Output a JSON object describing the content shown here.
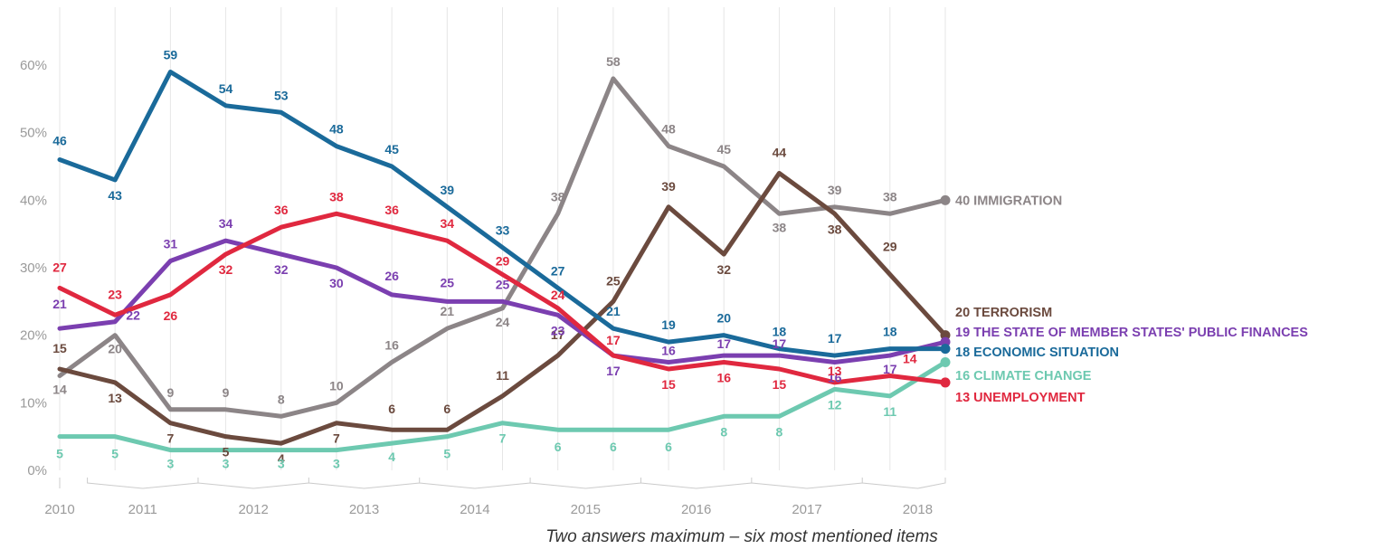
{
  "chart_data": {
    "type": "line",
    "caption": "Two answers maximum – six most mentioned items",
    "ylim": [
      0,
      60
    ],
    "y_ticks": [
      "0%",
      "10%",
      "20%",
      "30%",
      "40%",
      "50%",
      "60%"
    ],
    "x_tick_labels": [
      "2010",
      "2011",
      "2012",
      "2013",
      "2014",
      "2015",
      "2016",
      "2017",
      "2018"
    ],
    "grid": "vertical",
    "legend": "inline-right",
    "series": [
      {
        "id": "immigration",
        "end_label": "IMMIGRATION",
        "color": "#8c8587",
        "values": [
          14,
          20,
          9,
          9,
          8,
          10,
          16,
          21,
          24,
          38,
          58,
          48,
          45,
          38,
          39,
          38,
          40
        ]
      },
      {
        "id": "terrorism",
        "end_label": "TERRORISM",
        "color": "#6b4a3e",
        "values": [
          15,
          13,
          7,
          5,
          4,
          7,
          6,
          6,
          11,
          17,
          25,
          39,
          32,
          44,
          38,
          29,
          20
        ]
      },
      {
        "id": "public-finances",
        "end_label": "THE STATE OF MEMBER STATES' PUBLIC FINANCES",
        "color": "#7b3fb0",
        "values": [
          21,
          22,
          31,
          34,
          32,
          30,
          26,
          25,
          25,
          23,
          17,
          16,
          17,
          17,
          16,
          17,
          19
        ]
      },
      {
        "id": "economic-situation",
        "end_label": "ECONOMIC SITUATION",
        "color": "#1a6a9a",
        "values": [
          46,
          43,
          59,
          54,
          53,
          48,
          45,
          39,
          33,
          27,
          21,
          19,
          20,
          18,
          17,
          18,
          18
        ]
      },
      {
        "id": "climate-change",
        "end_label": "CLIMATE CHANGE",
        "color": "#6dc9b0",
        "values": [
          5,
          5,
          3,
          3,
          3,
          3,
          4,
          5,
          7,
          6,
          6,
          6,
          8,
          8,
          12,
          11,
          16
        ]
      },
      {
        "id": "unemployment",
        "end_label": "UNEMPLOYMENT",
        "color": "#e0283f",
        "values": [
          27,
          23,
          26,
          32,
          36,
          38,
          36,
          34,
          29,
          24,
          17,
          15,
          16,
          15,
          13,
          14,
          13
        ]
      }
    ]
  }
}
